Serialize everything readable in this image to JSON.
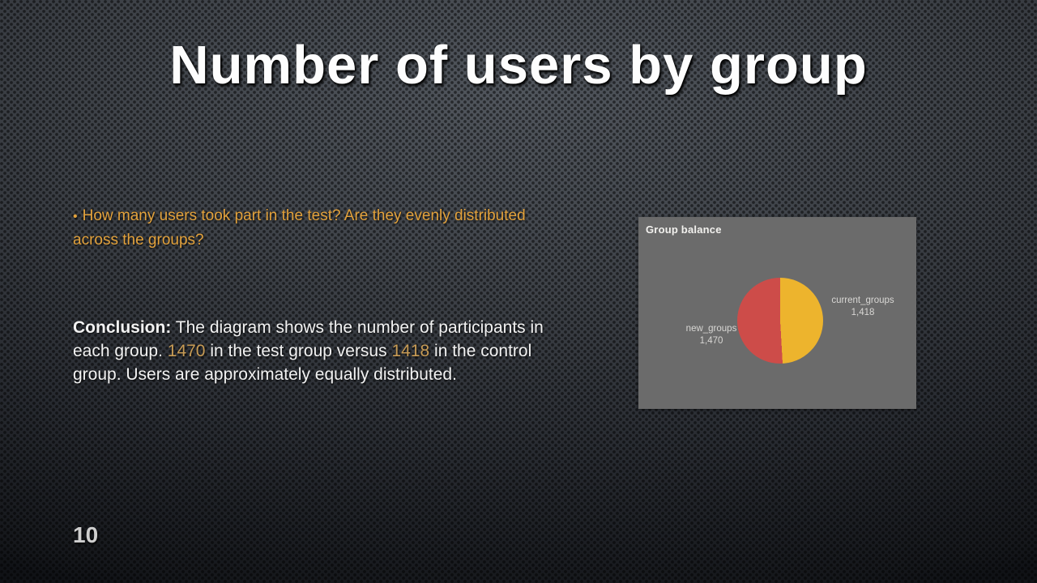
{
  "slide": {
    "title": "Number of users by group",
    "page_number": "10",
    "bullet": {
      "marker": "•",
      "text": "How many users took part in the test? Are they evenly distributed across the groups?"
    },
    "conclusion": {
      "label": "Conclusion:",
      "text_before": "The diagram shows the number of participants in each group.",
      "value1": "1470",
      "text_mid": "in the test group versus",
      "value2": "1418",
      "text_after": "in the control group. Users are approximately equally distributed."
    },
    "accent_colors": {
      "bullet_orange": "#e3a23c",
      "number_gold": "#c79b55"
    }
  },
  "chart_data": {
    "type": "pie",
    "title": "Group balance",
    "legend_position": "none",
    "background": "#6b6b6b",
    "start_angle_deg": 0,
    "direction": "clockwise",
    "slices": [
      {
        "label": "current_groups",
        "value": 1418,
        "display": "1,418",
        "color": "#edb42d"
      },
      {
        "label": "new_groups",
        "value": 1470,
        "display": "1,470",
        "color": "#cd4c49"
      }
    ]
  }
}
